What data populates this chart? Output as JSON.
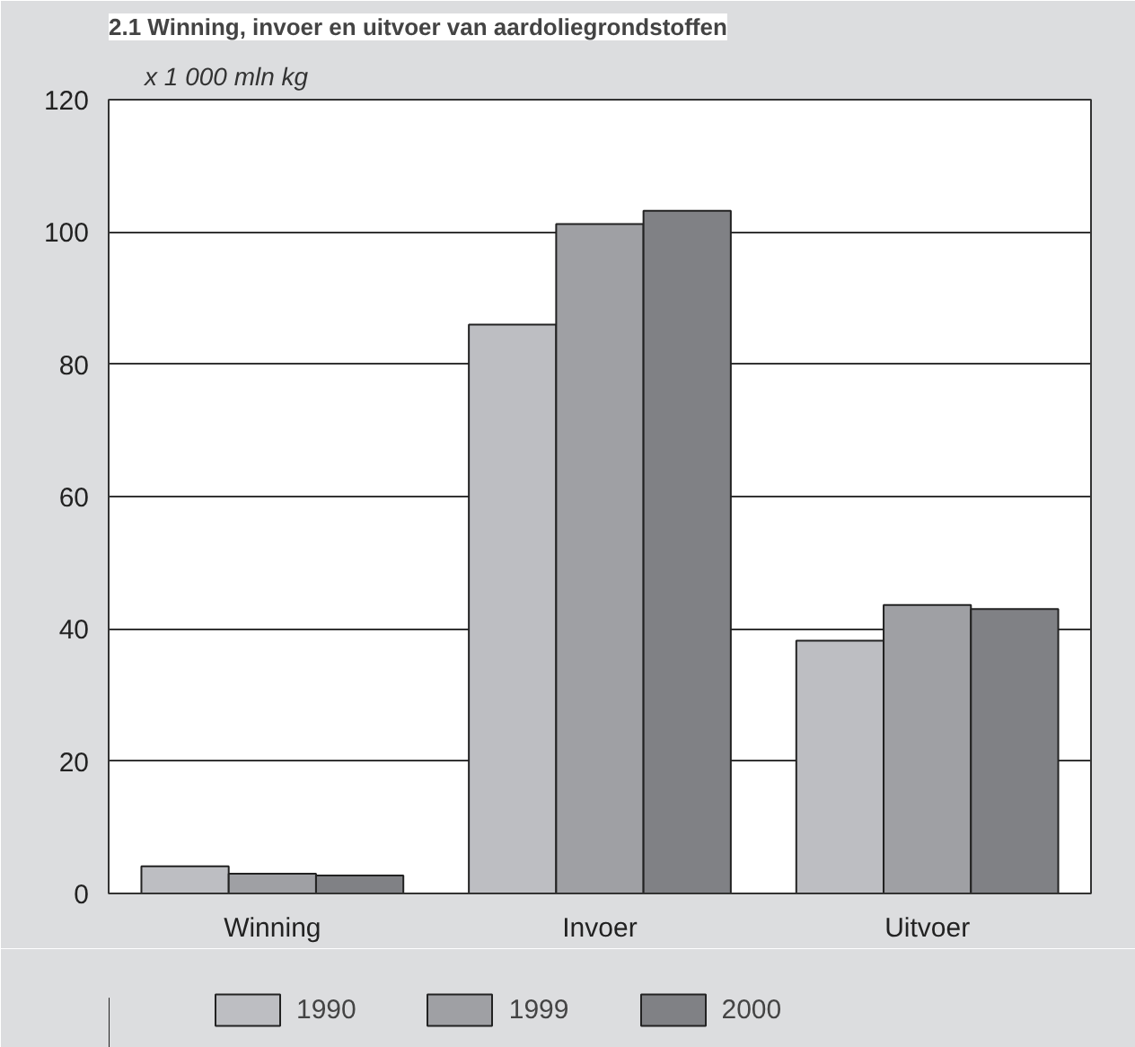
{
  "chart_data": {
    "type": "bar",
    "title": "2.1 Winning, invoer en uitvoer van aardoliegrondstoffen",
    "ylabel": "x  1 000 mln kg",
    "categories": [
      "Winning",
      "Invoer",
      "Uitvoer"
    ],
    "series": [
      {
        "name": "1990",
        "color": "#bdbec2",
        "values": [
          4.1,
          86,
          38.2
        ]
      },
      {
        "name": "1999",
        "color": "#9fa0a4",
        "values": [
          3.0,
          101.2,
          43.6
        ]
      },
      {
        "name": "2000",
        "color": "#808185",
        "values": [
          2.7,
          103.2,
          43.0
        ]
      }
    ],
    "ylim": [
      0,
      120
    ],
    "yticks": [
      0,
      20,
      40,
      60,
      80,
      100,
      120
    ],
    "grid": "y",
    "legend": "bottom"
  }
}
